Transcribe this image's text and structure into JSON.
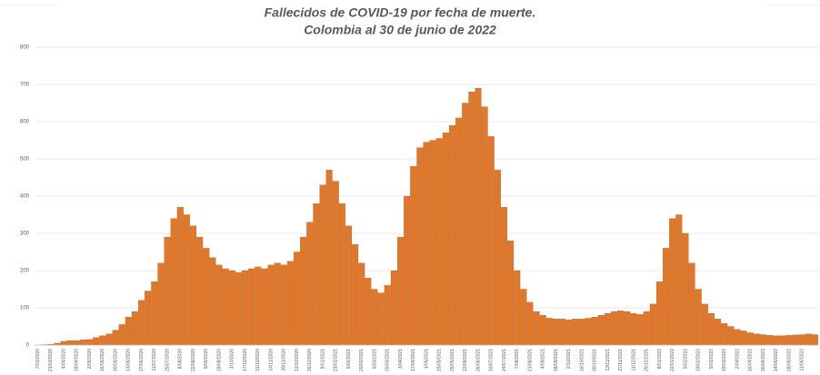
{
  "chart_data": {
    "type": "bar",
    "title": "Fallecidos de COVID-19 por fecha de muerte.",
    "subtitle": "Colombia al 30 de junio de 2022",
    "color": "#e0782c",
    "grid": true,
    "ylim": [
      0,
      800
    ],
    "yticks": [
      0,
      100,
      200,
      300,
      400,
      500,
      600,
      700,
      800
    ],
    "categories": [
      "7/03/2020",
      null,
      "21/03/2020",
      null,
      "4/04/2020",
      null,
      "18/04/2020",
      null,
      "2/05/2020",
      null,
      "16/05/2020",
      null,
      "30/05/2020",
      null,
      "13/06/2020",
      null,
      "27/06/2020",
      null,
      "11/07/2020",
      null,
      "25/07/2020",
      null,
      "8/08/2020",
      null,
      "22/08/2020",
      null,
      "5/09/2020",
      null,
      "19/09/2020",
      null,
      "3/10/2020",
      null,
      "17/10/2020",
      null,
      "31/10/2020",
      null,
      "14/11/2020",
      null,
      "28/11/2020",
      null,
      "12/12/2020",
      null,
      "26/12/2020",
      null,
      "9/01/2021",
      null,
      "23/01/2021",
      null,
      "6/02/2021",
      null,
      "20/02/2021",
      null,
      "6/03/2021",
      null,
      "20/03/2021",
      null,
      "3/04/2021",
      null,
      "17/04/2021",
      null,
      "1/05/2021",
      null,
      "15/05/2021",
      null,
      "29/05/2021",
      null,
      "12/06/2021",
      null,
      "26/06/2021",
      null,
      "10/07/2021",
      null,
      "24/07/2021",
      null,
      "7/08/2021",
      null,
      "21/08/2021",
      null,
      "4/09/2021",
      null,
      "18/09/2021",
      null,
      "2/10/2021",
      null,
      "16/10/2021",
      null,
      "30/10/2021",
      null,
      "13/11/2021",
      null,
      "27/11/2021",
      null,
      "11/12/2021",
      null,
      "25/12/2021",
      null,
      "8/01/2022",
      null,
      "22/01/2022",
      null,
      "5/02/2022",
      null,
      "19/02/2022",
      null,
      "5/03/2022",
      null,
      "19/03/2022",
      null,
      "2/04/2022",
      null,
      "16/04/2022",
      null,
      "30/04/2022",
      null,
      "14/05/2022",
      null,
      "28/05/2022",
      null,
      "11/06/2022",
      null,
      null
    ],
    "values": [
      0,
      1,
      2,
      5,
      10,
      12,
      12,
      14,
      15,
      20,
      25,
      30,
      40,
      55,
      75,
      90,
      120,
      145,
      170,
      220,
      290,
      340,
      370,
      350,
      320,
      290,
      260,
      235,
      215,
      205,
      200,
      195,
      200,
      205,
      210,
      205,
      215,
      220,
      215,
      225,
      250,
      290,
      330,
      380,
      430,
      470,
      440,
      380,
      320,
      270,
      220,
      180,
      150,
      140,
      160,
      200,
      290,
      400,
      480,
      530,
      545,
      550,
      555,
      570,
      590,
      610,
      650,
      680,
      690,
      640,
      560,
      470,
      370,
      280,
      200,
      150,
      115,
      90,
      80,
      72,
      70,
      70,
      68,
      70,
      70,
      72,
      75,
      80,
      85,
      90,
      92,
      90,
      85,
      82,
      90,
      110,
      170,
      260,
      340,
      350,
      300,
      220,
      150,
      110,
      85,
      70,
      58,
      50,
      42,
      38,
      33,
      30,
      28,
      26,
      25,
      25,
      26,
      27,
      28,
      30,
      28
    ]
  }
}
